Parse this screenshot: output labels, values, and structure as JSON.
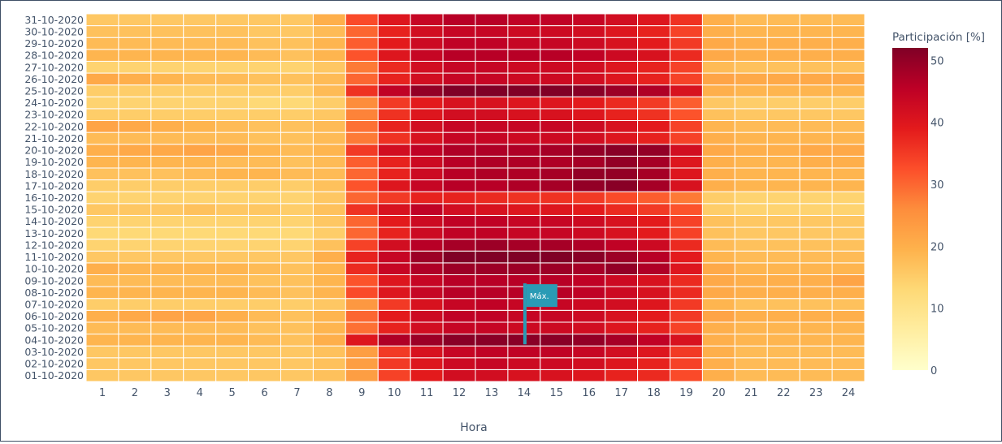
{
  "chart_data": {
    "type": "heatmap",
    "xlabel": "Hora",
    "colorbar": {
      "title": "Participación [%]",
      "range": [
        0,
        52
      ],
      "ticks": [
        "0",
        "10",
        "20",
        "30",
        "40",
        "50"
      ],
      "colorscale": [
        "#ffffcc",
        "#ffeda0",
        "#fed976",
        "#feb24c",
        "#fd8d3c",
        "#fc4e2a",
        "#e31a1c",
        "#bd0026",
        "#800026"
      ]
    },
    "x": [
      "1",
      "2",
      "3",
      "4",
      "5",
      "6",
      "7",
      "8",
      "9",
      "10",
      "11",
      "12",
      "13",
      "14",
      "15",
      "16",
      "17",
      "18",
      "19",
      "20",
      "21",
      "22",
      "23",
      "24"
    ],
    "y": [
      "01-10-2020",
      "02-10-2020",
      "03-10-2020",
      "04-10-2020",
      "05-10-2020",
      "06-10-2020",
      "07-10-2020",
      "08-10-2020",
      "09-10-2020",
      "10-10-2020",
      "11-10-2020",
      "12-10-2020",
      "13-10-2020",
      "14-10-2020",
      "15-10-2020",
      "16-10-2020",
      "17-10-2020",
      "18-10-2020",
      "19-10-2020",
      "20-10-2020",
      "21-10-2020",
      "22-10-2020",
      "23-10-2020",
      "24-10-2020",
      "25-10-2020",
      "26-10-2020",
      "27-10-2020",
      "28-10-2020",
      "29-10-2020",
      "30-10-2020",
      "31-10-2020"
    ],
    "z": [
      [
        16,
        16,
        16,
        16,
        16,
        16,
        16,
        17,
        23,
        34,
        39,
        42,
        42,
        41,
        41,
        40,
        38,
        37,
        33,
        20,
        18,
        18,
        18,
        18
      ],
      [
        16,
        16,
        16,
        16,
        16,
        16,
        16,
        17,
        23,
        35,
        40,
        43,
        44,
        43,
        43,
        42,
        40,
        38,
        34,
        20,
        18,
        18,
        18,
        18
      ],
      [
        16,
        16,
        16,
        16,
        16,
        16,
        16,
        17,
        23,
        35,
        41,
        44,
        45,
        45,
        45,
        44,
        42,
        40,
        35,
        20,
        18,
        18,
        18,
        18
      ],
      [
        19,
        19,
        19,
        19,
        19,
        18,
        17,
        20,
        40,
        47,
        49,
        51,
        51,
        51,
        51,
        50,
        48,
        45,
        41,
        20,
        19,
        19,
        19,
        19
      ],
      [
        18,
        18,
        18,
        18,
        18,
        17,
        17,
        19,
        29,
        38,
        42,
        44,
        44,
        43,
        43,
        42,
        40,
        38,
        34,
        20,
        19,
        19,
        19,
        19
      ],
      [
        20,
        21,
        22,
        22,
        20,
        18,
        17,
        19,
        30,
        39,
        43,
        45,
        45,
        44,
        44,
        43,
        41,
        39,
        35,
        22,
        20,
        20,
        20,
        20
      ],
      [
        15,
        15,
        15,
        15,
        15,
        15,
        15,
        16,
        24,
        35,
        41,
        44,
        45,
        44,
        44,
        43,
        42,
        40,
        35,
        19,
        17,
        17,
        17,
        17
      ],
      [
        19,
        19,
        19,
        19,
        19,
        18,
        17,
        19,
        33,
        40,
        44,
        46,
        46,
        46,
        46,
        45,
        43,
        41,
        37,
        21,
        20,
        20,
        20,
        20
      ],
      [
        18,
        18,
        18,
        18,
        18,
        17,
        17,
        19,
        32,
        40,
        44,
        46,
        46,
        46,
        46,
        45,
        43,
        41,
        37,
        21,
        20,
        20,
        20,
        22
      ],
      [
        20,
        19,
        19,
        19,
        19,
        18,
        17,
        19,
        37,
        44,
        47,
        49,
        49,
        49,
        49,
        48,
        50,
        47,
        40,
        21,
        19,
        19,
        19,
        19
      ],
      [
        16,
        16,
        16,
        16,
        16,
        16,
        16,
        20,
        38,
        44,
        49,
        52,
        52,
        52,
        52,
        51,
        49,
        46,
        39,
        19,
        18,
        18,
        18,
        18
      ],
      [
        14,
        14,
        14,
        14,
        14,
        14,
        14,
        17,
        34,
        42,
        46,
        48,
        49,
        48,
        48,
        47,
        45,
        43,
        37,
        18,
        17,
        17,
        17,
        17
      ],
      [
        13,
        13,
        13,
        13,
        13,
        13,
        13,
        15,
        30,
        38,
        43,
        45,
        45,
        44,
        44,
        43,
        41,
        39,
        34,
        17,
        16,
        16,
        16,
        16
      ],
      [
        14,
        14,
        14,
        14,
        14,
        14,
        14,
        16,
        30,
        39,
        43,
        45,
        45,
        44,
        44,
        43,
        41,
        39,
        34,
        17,
        16,
        16,
        16,
        16
      ],
      [
        16,
        16,
        16,
        17,
        16,
        16,
        15,
        17,
        36,
        41,
        45,
        42,
        41,
        40,
        40,
        39,
        37,
        35,
        32,
        15,
        14,
        14,
        14,
        14
      ],
      [
        14,
        14,
        14,
        14,
        14,
        14,
        14,
        16,
        30,
        35,
        38,
        38,
        37,
        36,
        36,
        35,
        33,
        31,
        28,
        15,
        14,
        14,
        14,
        14
      ],
      [
        15,
        15,
        15,
        15,
        15,
        15,
        15,
        17,
        32,
        40,
        44,
        46,
        46,
        47,
        48,
        50,
        51,
        48,
        41,
        20,
        19,
        19,
        19,
        19
      ],
      [
        17,
        17,
        17,
        18,
        19,
        19,
        18,
        18,
        30,
        38,
        43,
        46,
        47,
        47,
        48,
        50,
        50,
        48,
        40,
        20,
        19,
        19,
        19,
        19
      ],
      [
        19,
        19,
        19,
        19,
        18,
        18,
        17,
        18,
        31,
        38,
        43,
        46,
        47,
        47,
        47,
        48,
        50,
        48,
        40,
        20,
        19,
        19,
        20,
        20
      ],
      [
        20,
        21,
        21,
        22,
        21,
        19,
        18,
        19,
        35,
        42,
        45,
        47,
        47,
        47,
        48,
        50,
        51,
        50,
        42,
        21,
        20,
        20,
        21,
        21
      ],
      [
        18,
        18,
        18,
        18,
        18,
        17,
        17,
        18,
        28,
        36,
        41,
        44,
        44,
        43,
        43,
        42,
        40,
        38,
        34,
        20,
        19,
        19,
        19,
        19
      ],
      [
        22,
        21,
        20,
        19,
        18,
        17,
        17,
        18,
        29,
        38,
        42,
        44,
        44,
        44,
        44,
        43,
        41,
        39,
        34,
        19,
        18,
        18,
        18,
        18
      ],
      [
        15,
        15,
        15,
        15,
        15,
        15,
        15,
        16,
        27,
        36,
        40,
        42,
        42,
        41,
        41,
        40,
        38,
        36,
        32,
        17,
        16,
        16,
        16,
        16
      ],
      [
        14,
        14,
        14,
        14,
        14,
        13,
        13,
        15,
        26,
        35,
        39,
        41,
        41,
        40,
        40,
        39,
        37,
        35,
        31,
        16,
        15,
        15,
        15,
        15
      ],
      [
        15,
        15,
        15,
        15,
        15,
        15,
        15,
        18,
        36,
        45,
        50,
        52,
        52,
        52,
        52,
        51,
        49,
        47,
        41,
        20,
        19,
        19,
        19,
        19
      ],
      [
        21,
        20,
        19,
        18,
        18,
        17,
        17,
        18,
        30,
        38,
        42,
        44,
        44,
        43,
        43,
        42,
        40,
        38,
        34,
        22,
        21,
        21,
        21,
        21
      ],
      [
        14,
        14,
        14,
        14,
        14,
        14,
        14,
        16,
        28,
        37,
        42,
        44,
        44,
        43,
        43,
        42,
        40,
        38,
        34,
        18,
        17,
        17,
        17,
        17
      ],
      [
        19,
        19,
        19,
        19,
        19,
        18,
        17,
        19,
        32,
        40,
        44,
        46,
        46,
        46,
        46,
        45,
        43,
        41,
        37,
        21,
        20,
        20,
        20,
        20
      ],
      [
        18,
        18,
        18,
        18,
        18,
        17,
        17,
        19,
        31,
        39,
        43,
        45,
        45,
        44,
        44,
        43,
        41,
        39,
        35,
        21,
        20,
        20,
        20,
        20
      ],
      [
        17,
        17,
        17,
        17,
        17,
        16,
        16,
        18,
        30,
        38,
        42,
        44,
        44,
        43,
        43,
        42,
        40,
        38,
        34,
        20,
        19,
        19,
        19,
        19
      ],
      [
        16,
        16,
        16,
        16,
        16,
        16,
        16,
        20,
        33,
        40,
        44,
        46,
        46,
        45,
        45,
        44,
        42,
        40,
        36,
        20,
        18,
        18,
        18,
        18
      ]
    ],
    "annotations": [
      {
        "text": "Máx.",
        "type": "flag",
        "x": "14",
        "y": "08-10-2020",
        "y_base": "04-10-2020"
      }
    ]
  }
}
